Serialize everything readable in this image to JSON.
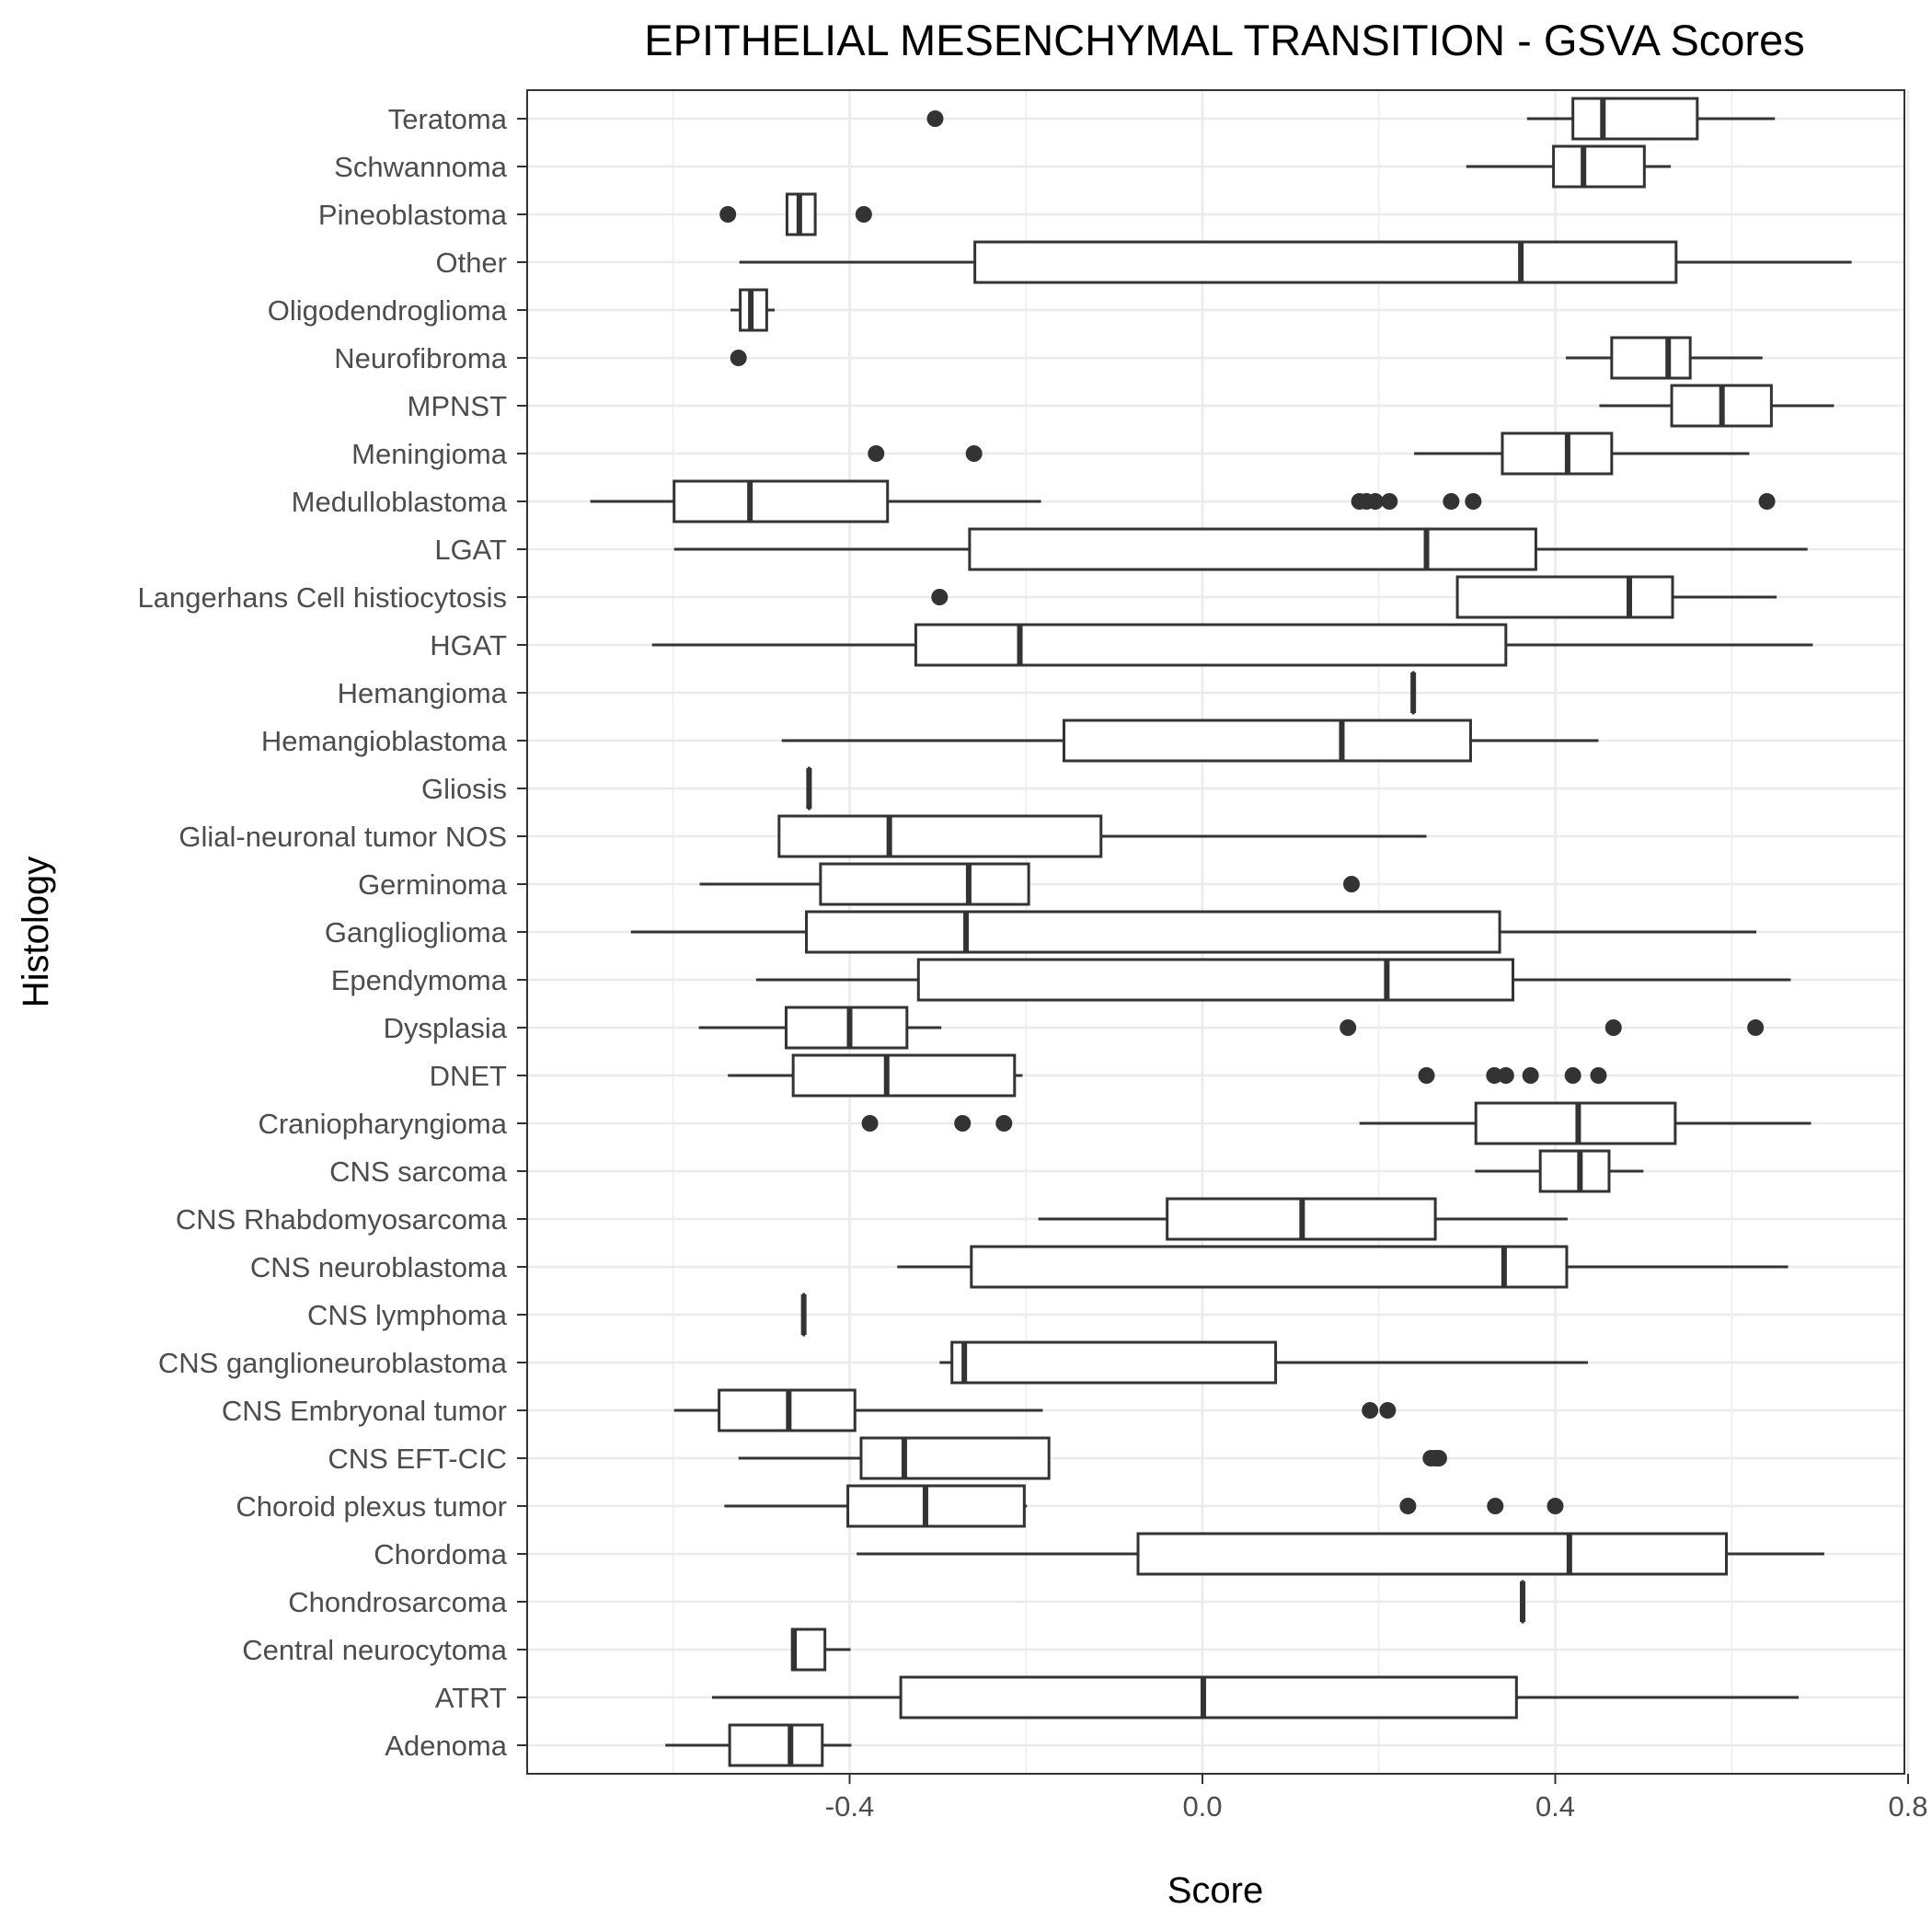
{
  "chart_data": {
    "type": "boxplot",
    "orientation": "horizontal",
    "title": "EPITHELIAL MESENCHYMAL TRANSITION - GSVA Scores",
    "xlabel": "Score",
    "ylabel": "Histology",
    "xlim": [
      -0.77,
      0.81
    ],
    "x_ticks": [
      -0.4,
      0.0,
      0.4,
      0.8
    ],
    "x_tick_labels": [
      "-0.4",
      "0.0",
      "0.4",
      "0.8"
    ],
    "grid": true,
    "categories": [
      {
        "name": "Adenoma",
        "whisker_low": -0.609,
        "q1": -0.536,
        "median": -0.467,
        "q3": -0.431,
        "whisker_high": -0.398,
        "outliers": []
      },
      {
        "name": "ATRT",
        "whisker_low": -0.556,
        "q1": -0.342,
        "median": 0.001,
        "q3": 0.356,
        "whisker_high": 0.676,
        "outliers": []
      },
      {
        "name": "Central neurocytoma",
        "whisker_low": -0.465,
        "q1": -0.465,
        "median": -0.463,
        "q3": -0.428,
        "whisker_high": -0.399,
        "outliers": []
      },
      {
        "name": "Chondrosarcoma",
        "whisker_low": 0.363,
        "q1": 0.363,
        "median": 0.363,
        "q3": 0.363,
        "whisker_high": 0.363,
        "outliers": []
      },
      {
        "name": "Chordoma",
        "whisker_low": -0.392,
        "q1": -0.073,
        "median": 0.416,
        "q3": 0.594,
        "whisker_high": 0.705,
        "outliers": []
      },
      {
        "name": "Choroid plexus tumor",
        "whisker_low": -0.542,
        "q1": -0.402,
        "median": -0.314,
        "q3": -0.202,
        "whisker_high": -0.199,
        "outliers": [
          0.233,
          0.332,
          0.4
        ]
      },
      {
        "name": "CNS EFT-CIC",
        "whisker_low": -0.526,
        "q1": -0.387,
        "median": -0.338,
        "q3": -0.174,
        "whisker_high": -0.174,
        "outliers": [
          0.259,
          0.264,
          0.268
        ]
      },
      {
        "name": "CNS Embryonal tumor",
        "whisker_low": -0.599,
        "q1": -0.548,
        "median": -0.469,
        "q3": -0.394,
        "whisker_high": -0.181,
        "outliers": [
          0.19,
          0.21
        ]
      },
      {
        "name": "CNS ganglioneuroblastoma",
        "whisker_low": -0.298,
        "q1": -0.284,
        "median": -0.27,
        "q3": 0.083,
        "whisker_high": 0.437,
        "outliers": []
      },
      {
        "name": "CNS lymphoma",
        "whisker_low": -0.452,
        "q1": -0.452,
        "median": -0.452,
        "q3": -0.452,
        "whisker_high": -0.452,
        "outliers": []
      },
      {
        "name": "CNS neuroblastoma",
        "whisker_low": -0.346,
        "q1": -0.262,
        "median": 0.342,
        "q3": 0.413,
        "whisker_high": 0.664,
        "outliers": []
      },
      {
        "name": "CNS Rhabdomyosarcoma",
        "whisker_low": -0.186,
        "q1": -0.04,
        "median": 0.113,
        "q3": 0.264,
        "whisker_high": 0.414,
        "outliers": []
      },
      {
        "name": "CNS sarcoma",
        "whisker_low": 0.309,
        "q1": 0.383,
        "median": 0.428,
        "q3": 0.461,
        "whisker_high": 0.5,
        "outliers": []
      },
      {
        "name": "Craniopharyngioma",
        "whisker_low": 0.178,
        "q1": 0.31,
        "median": 0.426,
        "q3": 0.536,
        "whisker_high": 0.69,
        "outliers": [
          -0.377,
          -0.272,
          -0.225
        ]
      },
      {
        "name": "DNET",
        "whisker_low": -0.538,
        "q1": -0.464,
        "median": -0.358,
        "q3": -0.213,
        "whisker_high": -0.204,
        "outliers": [
          0.254,
          0.331,
          0.344,
          0.372,
          0.42,
          0.449
        ]
      },
      {
        "name": "Dysplasia",
        "whisker_low": -0.571,
        "q1": -0.472,
        "median": -0.4,
        "q3": -0.335,
        "whisker_high": -0.296,
        "outliers": [
          0.165,
          0.466,
          0.627
        ]
      },
      {
        "name": "Ependymoma",
        "whisker_low": -0.506,
        "q1": -0.322,
        "median": 0.209,
        "q3": 0.352,
        "whisker_high": 0.667,
        "outliers": []
      },
      {
        "name": "Ganglioglioma",
        "whisker_low": -0.648,
        "q1": -0.449,
        "median": -0.268,
        "q3": 0.337,
        "whisker_high": 0.628,
        "outliers": []
      },
      {
        "name": "Germinoma",
        "whisker_low": -0.57,
        "q1": -0.433,
        "median": -0.265,
        "q3": -0.197,
        "whisker_high": -0.197,
        "outliers": [
          0.169
        ]
      },
      {
        "name": "Glial-neuronal tumor NOS",
        "whisker_low": -0.481,
        "q1": -0.48,
        "median": -0.355,
        "q3": -0.115,
        "whisker_high": 0.254,
        "outliers": []
      },
      {
        "name": "Gliosis",
        "whisker_low": -0.446,
        "q1": -0.446,
        "median": -0.446,
        "q3": -0.446,
        "whisker_high": -0.446,
        "outliers": []
      },
      {
        "name": "Hemangioblastoma",
        "whisker_low": -0.477,
        "q1": -0.157,
        "median": 0.158,
        "q3": 0.304,
        "whisker_high": 0.449,
        "outliers": []
      },
      {
        "name": "Hemangioma",
        "whisker_low": 0.239,
        "q1": 0.239,
        "median": 0.239,
        "q3": 0.239,
        "whisker_high": 0.239,
        "outliers": []
      },
      {
        "name": "HGAT",
        "whisker_low": -0.624,
        "q1": -0.325,
        "median": -0.207,
        "q3": 0.344,
        "whisker_high": 0.692,
        "outliers": []
      },
      {
        "name": "Langerhans Cell histiocytosis",
        "whisker_low": 0.289,
        "q1": 0.289,
        "median": 0.484,
        "q3": 0.533,
        "whisker_high": 0.651,
        "outliers": [
          -0.298
        ]
      },
      {
        "name": "LGAT",
        "whisker_low": -0.599,
        "q1": -0.264,
        "median": 0.254,
        "q3": 0.378,
        "whisker_high": 0.686,
        "outliers": []
      },
      {
        "name": "Medulloblastoma",
        "whisker_low": -0.694,
        "q1": -0.599,
        "median": -0.513,
        "q3": -0.357,
        "whisker_high": -0.183,
        "outliers": [
          0.178,
          0.186,
          0.196,
          0.212,
          0.282,
          0.307,
          0.64
        ]
      },
      {
        "name": "Meningioma",
        "whisker_low": 0.24,
        "q1": 0.34,
        "median": 0.414,
        "q3": 0.464,
        "whisker_high": 0.62,
        "outliers": [
          -0.37,
          -0.259
        ]
      },
      {
        "name": "MPNST",
        "whisker_low": 0.45,
        "q1": 0.532,
        "median": 0.589,
        "q3": 0.645,
        "whisker_high": 0.716,
        "outliers": []
      },
      {
        "name": "Neurofibroma",
        "whisker_low": 0.412,
        "q1": 0.464,
        "median": 0.528,
        "q3": 0.553,
        "whisker_high": 0.635,
        "outliers": [
          -0.526
        ]
      },
      {
        "name": "Oligodendroglioma",
        "whisker_low": -0.535,
        "q1": -0.524,
        "median": -0.512,
        "q3": -0.494,
        "whisker_high": -0.485,
        "outliers": []
      },
      {
        "name": "Other",
        "whisker_low": -0.525,
        "q1": -0.258,
        "median": 0.361,
        "q3": 0.537,
        "whisker_high": 0.736,
        "outliers": []
      },
      {
        "name": "Pineoblastoma",
        "whisker_low": -0.471,
        "q1": -0.471,
        "median": -0.457,
        "q3": -0.439,
        "whisker_high": -0.439,
        "outliers": [
          -0.538,
          -0.384
        ]
      },
      {
        "name": "Schwannoma",
        "whisker_low": 0.299,
        "q1": 0.398,
        "median": 0.432,
        "q3": 0.501,
        "whisker_high": 0.531,
        "outliers": []
      },
      {
        "name": "Teratoma",
        "whisker_low": 0.368,
        "q1": 0.42,
        "median": 0.454,
        "q3": 0.561,
        "whisker_high": 0.649,
        "outliers": [
          -0.303
        ]
      }
    ]
  }
}
